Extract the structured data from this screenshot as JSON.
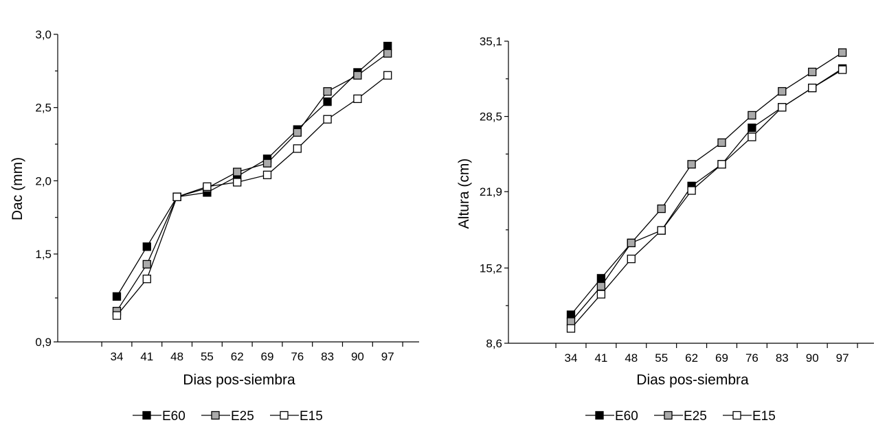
{
  "chart_data": [
    {
      "type": "line",
      "title": "",
      "xlabel": "Dias pos-siembra",
      "ylabel": "Dac (mm)",
      "categories": [
        "34",
        "41",
        "48",
        "55",
        "62",
        "69",
        "76",
        "83",
        "90",
        "97"
      ],
      "ylim": [
        0.9,
        3.0
      ],
      "yticks": [
        0.9,
        1.5,
        2.0,
        2.5,
        3.0
      ],
      "ytick_labels": [
        "0,9",
        "1,5",
        "2,0",
        "2,5",
        "3,0"
      ],
      "series": [
        {
          "name": "E60",
          "color": "#000000",
          "values": [
            1.21,
            1.55,
            1.89,
            1.92,
            2.03,
            2.15,
            2.35,
            2.54,
            2.74,
            2.92
          ]
        },
        {
          "name": "E25",
          "color": "#aaaaaa",
          "values": [
            1.11,
            1.43,
            1.89,
            1.95,
            2.06,
            2.12,
            2.33,
            2.61,
            2.72,
            2.87
          ]
        },
        {
          "name": "E15",
          "color": "#ffffff",
          "values": [
            1.08,
            1.33,
            1.89,
            1.96,
            1.99,
            2.04,
            2.22,
            2.42,
            2.56,
            2.72
          ]
        }
      ],
      "legend": "bottom"
    },
    {
      "type": "line",
      "title": "",
      "xlabel": "Dias pos-siembra",
      "ylabel": "Altura (cm)",
      "categories": [
        "34",
        "41",
        "48",
        "55",
        "62",
        "69",
        "76",
        "83",
        "90",
        "97"
      ],
      "ylim": [
        8.6,
        35.1
      ],
      "yticks": [
        8.6,
        15.2,
        21.9,
        28.5,
        35.1
      ],
      "ytick_labels": [
        "8,6",
        "15,2",
        "21,9",
        "28,5",
        "35,1"
      ],
      "series": [
        {
          "name": "E60",
          "color": "#000000",
          "values": [
            11.1,
            14.3,
            17.4,
            18.5,
            22.4,
            24.3,
            27.5,
            29.3,
            31.0,
            32.7
          ]
        },
        {
          "name": "E25",
          "color": "#aaaaaa",
          "values": [
            10.5,
            13.6,
            17.4,
            20.4,
            24.3,
            26.2,
            28.6,
            30.7,
            32.4,
            34.1
          ]
        },
        {
          "name": "E15",
          "color": "#ffffff",
          "values": [
            9.9,
            12.9,
            16.0,
            18.5,
            22.0,
            24.3,
            26.7,
            29.3,
            31.0,
            32.6
          ]
        }
      ],
      "legend": "bottom"
    }
  ]
}
